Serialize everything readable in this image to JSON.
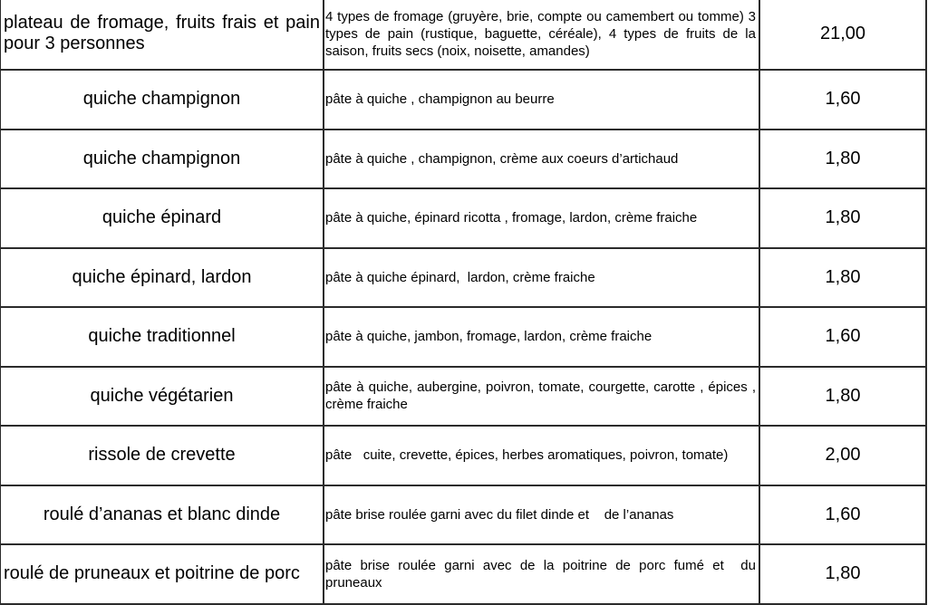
{
  "rows": [
    {
      "name": "plateau de fromage, fruits frais et pain pour 3 personnes",
      "description": "4 types de fromage (gruyère, brie, compte ou camembert ou tomme) 3 types de pain (rustique, baguette, céréale), 4 types de fruits de la saison, fruits secs (noix, noisette, amandes)",
      "price": "21,00"
    },
    {
      "name": "quiche champignon",
      "description": "pâte à quiche , champignon au beurre",
      "price": "1,60"
    },
    {
      "name": "quiche champignon",
      "description": "pâte à quiche , champignon, crème aux coeurs d’artichaud",
      "price": "1,80"
    },
    {
      "name": "quiche épinard",
      "description": "pâte à quiche, épinard ricotta , fromage, lardon, crème fraiche",
      "price": "1,80"
    },
    {
      "name": "quiche épinard, lardon",
      "description": "pâte à quiche épinard,  lardon, crème fraiche",
      "price": "1,80"
    },
    {
      "name": "quiche traditionnel",
      "description": "pâte à quiche, jambon, fromage, lardon, crème fraiche",
      "price": "1,60"
    },
    {
      "name": "quiche végétarien",
      "description": "pâte à quiche, aubergine, poivron, tomate, courgette, carotte , épices , crème fraiche",
      "price": "1,80"
    },
    {
      "name": "rissole de crevette",
      "description": "pâte   cuite, crevette, épices, herbes aromatiques, poivron, tomate)",
      "price": "2,00"
    },
    {
      "name": "roulé d’ananas et blanc dinde",
      "description": "pâte brise roulée garni avec du filet dinde et    de l’ananas",
      "price": "1,60"
    },
    {
      "name": "roulé de pruneaux et poitrine de porc",
      "description": "pâte brise roulée garni avec de la poitrine de porc fumé et  du pruneaux",
      "price": "1,80"
    }
  ]
}
